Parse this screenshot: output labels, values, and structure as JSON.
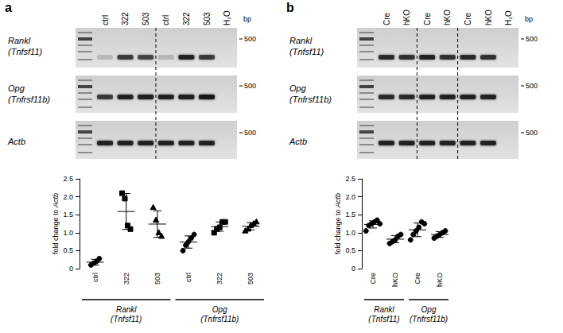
{
  "panels": [
    {
      "letter": "a",
      "gel": {
        "columns": [
          "ctrl",
          "322",
          "503",
          "ctrl",
          "322",
          "503",
          "H₂O"
        ],
        "size_label": "bp",
        "marker_label": "500",
        "rows": [
          {
            "label": [
              "Rankl",
              "(Tnfsf11)"
            ],
            "band_intensity": [
              0.15,
              0.7,
              0.65,
              0.18,
              0.85,
              0.7,
              0
            ]
          },
          {
            "label": [
              "Opg",
              "(Tnfrsf11b)"
            ],
            "band_intensity": [
              0.7,
              0.85,
              0.9,
              0.85,
              0.9,
              0.95,
              0
            ]
          },
          {
            "label": [
              "Actb"
            ],
            "band_intensity": [
              0.85,
              0.85,
              0.85,
              0.85,
              0.85,
              0.85,
              0
            ]
          }
        ]
      }
    },
    {
      "letter": "b",
      "gel": {
        "columns": [
          "Cre",
          "hKO",
          "Cre",
          "hKO",
          "Cre",
          "hKO",
          "H₂O"
        ],
        "size_label": "bp",
        "marker_label": "500",
        "rows": [
          {
            "label": [
              "Rankl",
              "(Tnfsf11)"
            ],
            "band_intensity": [
              0.8,
              0.75,
              0.85,
              0.75,
              0.8,
              0.75,
              0
            ]
          },
          {
            "label": [
              "Opg",
              "(Tnfrsf11b)"
            ],
            "band_intensity": [
              0.8,
              0.8,
              0.85,
              0.85,
              0.85,
              0.85,
              0
            ]
          },
          {
            "label": [
              "Actb"
            ],
            "band_intensity": [
              0.85,
              0.85,
              0.85,
              0.85,
              0.85,
              0.85,
              0
            ]
          }
        ]
      }
    }
  ],
  "chart_data": [
    {
      "type": "scatter",
      "color": "#000000",
      "grid": false,
      "y_label": [
        "fold change to ",
        "Actb"
      ],
      "categories": [
        "ctrl",
        "322",
        "503",
        "ctrl",
        "322",
        "503"
      ],
      "groups": [
        {
          "label": [
            "Rankl",
            "(Tnfsf11)"
          ],
          "first": 0,
          "last": 2
        },
        {
          "label": [
            "Opg",
            "(Tnfrsf11b)"
          ],
          "first": 3,
          "last": 5
        }
      ],
      "marker": [
        "circle",
        "square",
        "triangle",
        "circle",
        "square",
        "triangle"
      ],
      "values": [
        [
          0.1,
          0.15,
          0.2,
          0.28
        ],
        [
          2.1,
          1.95,
          1.2,
          1.1
        ],
        [
          1.7,
          1.35,
          1.0,
          0.9
        ],
        [
          0.5,
          0.65,
          0.75,
          0.85,
          0.95
        ],
        [
          1.0,
          1.1,
          1.15,
          1.3,
          1.3
        ],
        [
          1.05,
          1.1,
          1.2,
          1.25,
          1.3
        ]
      ],
      "mean": [
        0.18,
        1.59,
        1.24,
        0.74,
        1.17,
        1.18
      ],
      "error": [
        0.08,
        0.5,
        0.37,
        0.17,
        0.13,
        0.1
      ],
      "ylim": [
        0,
        2.5
      ],
      "yticks": [
        0,
        0.5,
        {
          "value": 1,
          "label": "1.0"
        },
        1.5,
        {
          "value": 2,
          "label": "2.0"
        },
        2.5
      ]
    },
    {
      "type": "scatter",
      "color": "#000000",
      "grid": false,
      "y_label": [
        "fold change to ",
        "Actb"
      ],
      "categories": [
        "Cre",
        "hKO",
        "Cre",
        "hKO"
      ],
      "groups": [
        {
          "label": [
            "Rankl",
            "(Tnfsf11)"
          ],
          "first": 0,
          "last": 1
        },
        {
          "label": [
            "Opg",
            "(Tnfrsf11b)"
          ],
          "first": 2,
          "last": 3
        }
      ],
      "marker": [
        "circle",
        "circle",
        "circle",
        "circle"
      ],
      "values": [
        [
          1.05,
          1.2,
          1.25,
          1.3,
          1.35,
          1.25
        ],
        [
          0.7,
          0.75,
          0.8,
          0.9,
          0.95
        ],
        [
          0.8,
          0.95,
          1.05,
          1.15,
          1.3,
          1.25
        ],
        [
          0.85,
          0.9,
          0.95,
          1.0,
          1.05
        ]
      ],
      "mean": [
        1.23,
        0.82,
        1.08,
        0.95
      ],
      "error": [
        0.1,
        0.1,
        0.19,
        0.08
      ],
      "ylim": [
        0,
        2.5
      ],
      "yticks": [
        0,
        0.5,
        {
          "value": 1,
          "label": "1.0"
        },
        1.5,
        {
          "value": 2,
          "label": "2.0"
        },
        2.5
      ]
    }
  ]
}
